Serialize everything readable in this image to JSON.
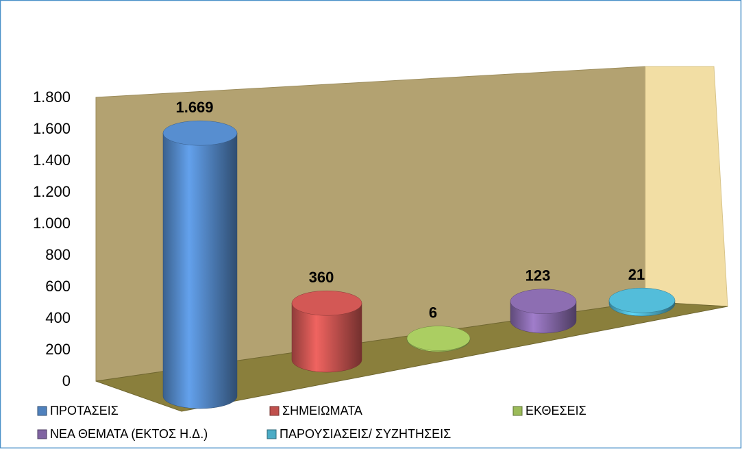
{
  "chart_data": {
    "type": "cylinder",
    "series": [
      {
        "name": "ΠΡΟΤΑΣΕΙΣ",
        "color": "#4f81bd",
        "values": [
          1669
        ],
        "value_labels": [
          "1.669"
        ]
      },
      {
        "name": "ΣΗΜΕΙΩΜΑΤΑ",
        "color": "#c0504d",
        "values": [
          360
        ]
      },
      {
        "name": "ΕΚΘΕΣΕΙΣ",
        "color": "#9bbb59",
        "values": [
          6
        ]
      },
      {
        "name": "ΝΕΑ ΘΕΜΑΤΑ (ΕΚΤΟΣ Η.Δ.)",
        "color": "#8064a2",
        "values": [
          123
        ]
      },
      {
        "name": "ΠΑΡΟΥΣΙΑΣΕΙΣ/ ΣΥΖΗΤΗΣΕΙΣ",
        "color": "#4bacc6",
        "values": [
          21
        ]
      }
    ],
    "ylim": [
      0,
      1800
    ],
    "yticks": [
      0,
      200,
      400,
      600,
      800,
      {
        "value": 1000,
        "label": "1.000"
      },
      {
        "value": 1200,
        "label": "1.200"
      },
      {
        "value": 1400,
        "label": "1.400"
      },
      {
        "value": 1600,
        "label": "1.600"
      },
      {
        "value": 1800,
        "label": "1.800"
      }
    ],
    "legend": "bottom"
  }
}
